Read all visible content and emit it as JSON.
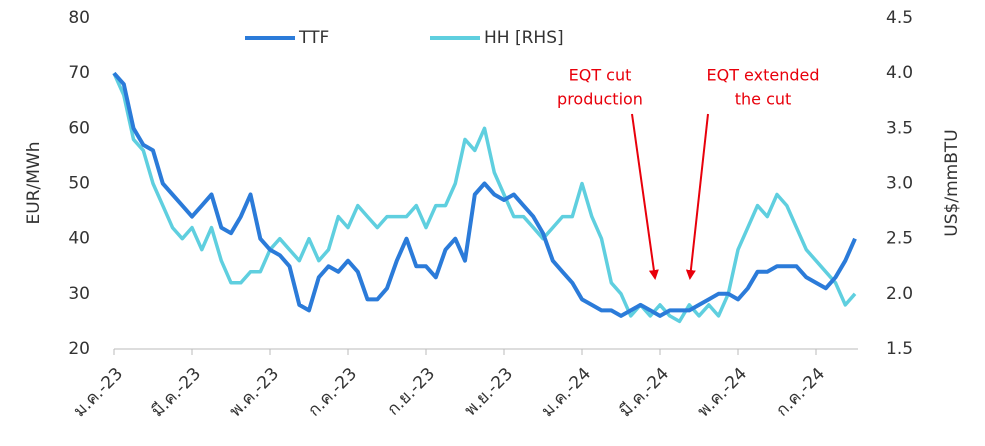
{
  "chart_data": {
    "type": "line",
    "y_label": "EUR/MWh",
    "y2_label": "US$/mmBTU",
    "categories": [
      "ม.ค.-23",
      null,
      null,
      null,
      null,
      null,
      null,
      null,
      "มี.ค.-23",
      null,
      null,
      null,
      null,
      null,
      null,
      null,
      "พ.ค.-23",
      null,
      null,
      null,
      null,
      null,
      null,
      null,
      "ก.ค.-23",
      null,
      null,
      null,
      null,
      null,
      null,
      null,
      "ก.ย.-23",
      null,
      null,
      null,
      null,
      null,
      null,
      null,
      "พ.ย.-23",
      null,
      null,
      null,
      null,
      null,
      null,
      null,
      "ม.ค.-24",
      null,
      null,
      null,
      null,
      null,
      null,
      null,
      "มี.ค.-24",
      null,
      null,
      null,
      null,
      null,
      null,
      null,
      "พ.ค.-24",
      null,
      null,
      null,
      null,
      null,
      null,
      null,
      "ก.ค.-24",
      null,
      null,
      null,
      null
    ],
    "series": [
      {
        "name": "TTF",
        "color": "#2b7bd9",
        "values": [
          70,
          68,
          60,
          57,
          56,
          50,
          48,
          46,
          44,
          46,
          48,
          42,
          41,
          44,
          48,
          40,
          38,
          37,
          35,
          28,
          27,
          33,
          35,
          34,
          36,
          34,
          29,
          29,
          31,
          36,
          40,
          35,
          35,
          33,
          38,
          40,
          36,
          48,
          50,
          48,
          47,
          48,
          46,
          44,
          41,
          36,
          34,
          32,
          29,
          28,
          27,
          27,
          26,
          27,
          28,
          27,
          26,
          27,
          27,
          27,
          28,
          29,
          30,
          30,
          29,
          31,
          34,
          34,
          35,
          35,
          35,
          33,
          32,
          31,
          33,
          36,
          40
        ]
      },
      {
        "name": "HH [RHS]",
        "color": "#5fcfdf",
        "axis": "y2",
        "values": [
          4.0,
          3.8,
          3.4,
          3.3,
          3.0,
          2.8,
          2.6,
          2.5,
          2.6,
          2.4,
          2.6,
          2.3,
          2.1,
          2.1,
          2.2,
          2.2,
          2.4,
          2.5,
          2.4,
          2.3,
          2.5,
          2.3,
          2.4,
          2.7,
          2.6,
          2.8,
          2.7,
          2.6,
          2.7,
          2.7,
          2.7,
          2.8,
          2.6,
          2.8,
          2.8,
          3.0,
          3.4,
          3.3,
          3.5,
          3.1,
          2.9,
          2.7,
          2.7,
          2.6,
          2.5,
          2.6,
          2.7,
          2.7,
          3.0,
          2.7,
          2.5,
          2.1,
          2.0,
          1.8,
          1.9,
          1.8,
          1.9,
          1.8,
          1.75,
          1.9,
          1.8,
          1.9,
          1.8,
          2.0,
          2.4,
          2.6,
          2.8,
          2.7,
          2.9,
          2.8,
          2.6,
          2.4,
          2.3,
          2.2,
          2.1,
          1.9,
          2.0
        ]
      }
    ],
    "ylim": [
      20,
      80
    ],
    "yticks": [
      20,
      30,
      40,
      50,
      60,
      70,
      80
    ],
    "y2lim": [
      1.5,
      4.5
    ],
    "y2ticks": [
      1.5,
      {
        "value": 2,
        "label": "2.0"
      },
      2.5,
      {
        "value": 3,
        "label": "3.0"
      },
      3.5,
      {
        "value": 4,
        "label": "4.0"
      },
      4.5
    ],
    "legend": "top",
    "annotations": [
      {
        "lines": [
          "EQT cut",
          "production"
        ]
      },
      {
        "lines": [
          "EQT extended",
          "the cut"
        ]
      }
    ]
  }
}
